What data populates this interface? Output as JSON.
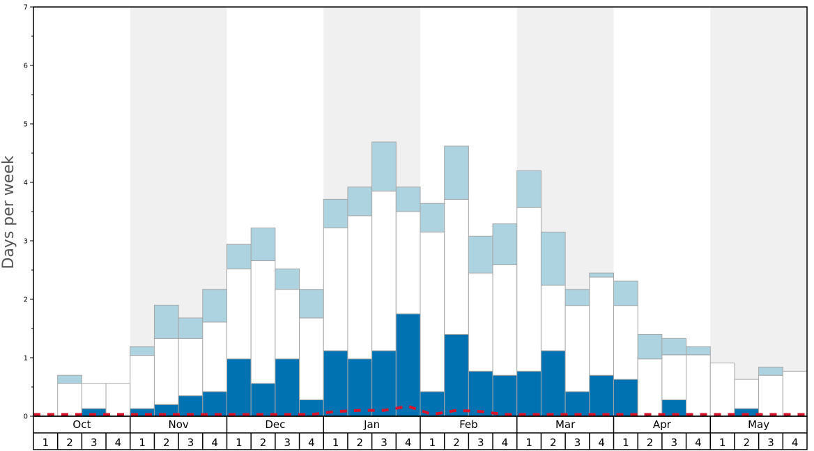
{
  "chart_data": {
    "type": "bar",
    "stacked": true,
    "ylabel": "Days per week",
    "ylim": [
      0,
      7
    ],
    "yticks": [
      "0",
      "1",
      "2",
      "3",
      "4",
      "5",
      "6",
      "7"
    ],
    "months": [
      "Oct",
      "Nov",
      "Dec",
      "Jan",
      "Feb",
      "Mar",
      "Apr",
      "May"
    ],
    "week_labels": [
      "1",
      "2",
      "3",
      "4"
    ],
    "shaded_months": [
      "Nov",
      "Jan",
      "Mar",
      "May"
    ],
    "colors": {
      "dark": "#0072b2",
      "white": "#ffffff",
      "light": "#aed3e0",
      "line": "#d7142c",
      "shade": "#f0f0f0",
      "bar_border": "#a6a6a6"
    },
    "series": [
      {
        "values": [
          0,
          0,
          0.13,
          0,
          0.13,
          0.2,
          0.35,
          0.42,
          0.98,
          0.56,
          0.98,
          0.28,
          1.12,
          0.98,
          1.12,
          1.75,
          0.42,
          1.4,
          0.77,
          0.7,
          0.77,
          1.12,
          0.42,
          0.7,
          0.63,
          0,
          0.28,
          0,
          0,
          0.13,
          0,
          0
        ]
      },
      {
        "values": [
          0,
          0.56,
          0.43,
          0.56,
          0.91,
          1.13,
          0.98,
          1.19,
          1.54,
          2.1,
          1.19,
          1.4,
          2.1,
          2.45,
          2.73,
          1.75,
          2.73,
          2.31,
          1.68,
          1.89,
          2.8,
          1.12,
          1.47,
          1.68,
          1.26,
          0.98,
          0.77,
          1.05,
          0.91,
          0.5,
          0.7,
          0.77
        ]
      },
      {
        "values": [
          0,
          0.14,
          0,
          0,
          0.15,
          0.57,
          0.35,
          0.56,
          0.42,
          0.56,
          0.35,
          0.49,
          0.49,
          0.49,
          0.84,
          0.42,
          0.49,
          0.91,
          0.63,
          0.7,
          0.63,
          0.91,
          0.28,
          0.07,
          0.42,
          0.42,
          0.28,
          0.14,
          0,
          0,
          0.14,
          0
        ]
      }
    ],
    "line_values": [
      0.03,
      0.03,
      0.03,
      0.03,
      0.03,
      0.03,
      0.03,
      0.03,
      0.03,
      0.03,
      0.03,
      0.03,
      0.08,
      0.1,
      0.1,
      0.17,
      0.03,
      0.1,
      0.08,
      0.03,
      0.03,
      0.03,
      0.03,
      0.03,
      0.03,
      0.03,
      0.03,
      0.03,
      0.03,
      0.03,
      0.03,
      0.03
    ]
  }
}
